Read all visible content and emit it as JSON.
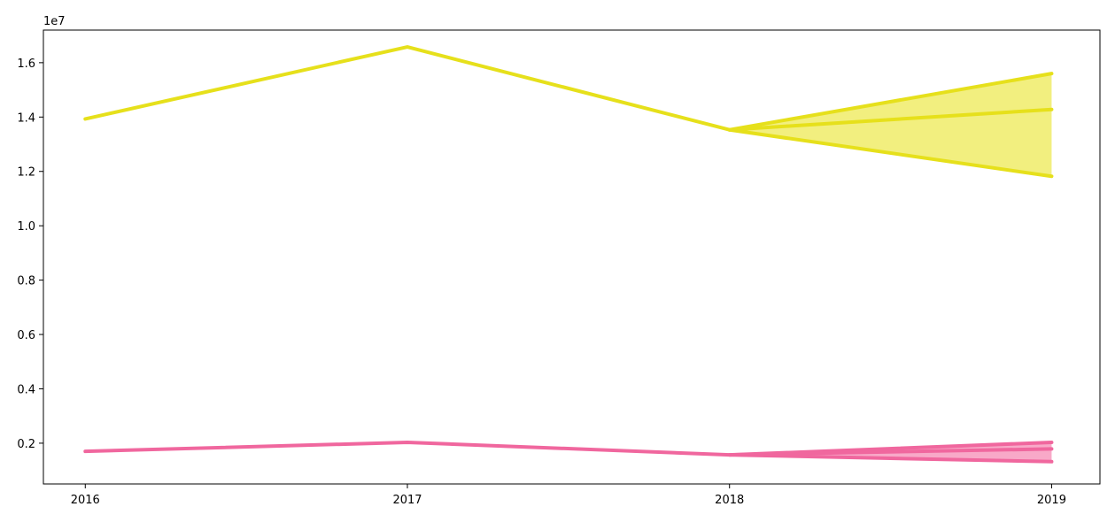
{
  "chart_data": {
    "type": "line",
    "title": "",
    "xlabel": "",
    "ylabel": "",
    "y_offset_label": "1e7",
    "x": [
      2016,
      2017,
      2018,
      2019
    ],
    "xticks": [
      "2016",
      "2017",
      "2018",
      "2019"
    ],
    "xlim": [
      2015.87,
      2019.15
    ],
    "ylim": [
      0.05,
      1.72
    ],
    "yticks": [
      "0.2",
      "0.4",
      "0.6",
      "0.8",
      "1.0",
      "1.2",
      "1.4",
      "1.6"
    ],
    "grid": false,
    "legend": "none",
    "series": [
      {
        "color": "#e6e01b",
        "fill_color": "#f2ef7f",
        "values": [
          1.393,
          1.658,
          1.353,
          1.428
        ],
        "upper": [
          null,
          null,
          1.353,
          1.56
        ],
        "lower": [
          null,
          null,
          1.353,
          1.182
        ]
      },
      {
        "color": "#f0679e",
        "fill_color": "#f8a9c8",
        "values": [
          0.17,
          0.203,
          0.157,
          0.179
        ],
        "upper": [
          null,
          null,
          0.157,
          0.203
        ],
        "lower": [
          null,
          null,
          0.157,
          0.132
        ]
      }
    ]
  }
}
